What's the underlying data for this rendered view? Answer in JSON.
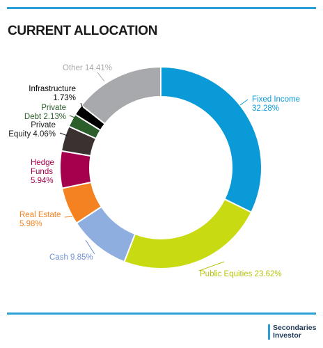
{
  "title": "CURRENT ALLOCATION",
  "brand": {
    "line1": "Secondaries",
    "line2": "Investor"
  },
  "chart_data": {
    "type": "pie",
    "variant": "donut",
    "title": "CURRENT ALLOCATION",
    "unit": "%",
    "slices": [
      {
        "name": "Fixed Income",
        "value": 32.28,
        "color": "#0b9ad8",
        "label_lines": [
          "Fixed Income",
          "32.28%"
        ]
      },
      {
        "name": "Public Equities",
        "value": 23.62,
        "color": "#c8da12",
        "label_lines": [
          "Public Equities 23.62%"
        ]
      },
      {
        "name": "Cash",
        "value": 9.85,
        "color": "#8eaee0",
        "label_lines": [
          "Cash 9.85%"
        ]
      },
      {
        "name": "Real Estate",
        "value": 5.98,
        "color": "#f58220",
        "label_lines": [
          "Real Estate",
          "5.98%"
        ]
      },
      {
        "name": "Hedge Funds",
        "value": 5.94,
        "color": "#a5004d",
        "label_lines": [
          "Hedge",
          "Funds",
          "5.94%"
        ]
      },
      {
        "name": "Private Equity",
        "value": 4.06,
        "color": "#3a3231",
        "label_lines": [
          "Private",
          "Equity 4.06%"
        ]
      },
      {
        "name": "Private Debt",
        "value": 2.13,
        "color": "#2b5e2b",
        "label_lines": [
          "Private",
          "Debt 2.13%"
        ]
      },
      {
        "name": "Infrastructure",
        "value": 1.73,
        "color": "#000000",
        "label_lines": [
          "Infrastructure",
          "1.73%"
        ]
      },
      {
        "name": "Other",
        "value": 14.41,
        "color": "#a7a9ac",
        "label_lines": [
          "Other 14.41%"
        ]
      }
    ],
    "label_colors": {
      "Fixed Income": "#0b9ad8",
      "Public Equities": "#b5c40a",
      "Cash": "#6f8fd0",
      "Real Estate": "#f58220",
      "Hedge Funds": "#a5004d",
      "Private Equity": "#1a1a1a",
      "Private Debt": "#2b5e2b",
      "Infrastructure": "#000000",
      "Other": "#a7a9ac"
    }
  }
}
